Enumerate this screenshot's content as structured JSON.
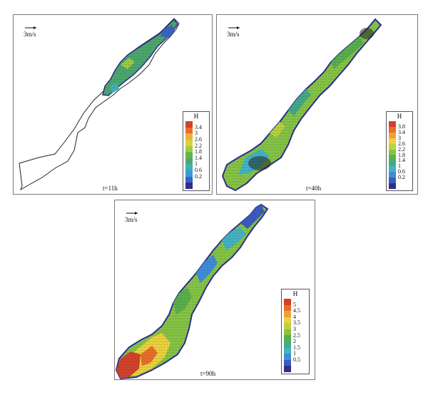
{
  "panels": [
    {
      "scale_label": "3m/s",
      "time_label": "t=11h",
      "legend": {
        "title": "H",
        "ticks": [
          "3.4",
          "3",
          "2.6",
          "2.2",
          "1.8",
          "1.4",
          "1",
          "0.6",
          "0.2"
        ],
        "colors": [
          "#d2412a",
          "#e86e28",
          "#eeb03a",
          "#d9d23a",
          "#9ccd43",
          "#67b543",
          "#4aa86f",
          "#42b0b3",
          "#3b9ad8",
          "#3a64c4",
          "#2d2e8e"
        ]
      }
    },
    {
      "scale_label": "3m/s",
      "time_label": "t=40h",
      "legend": {
        "title": "H",
        "ticks": [
          "3.8",
          "3.4",
          "3",
          "2.6",
          "2.2",
          "1.8",
          "1.4",
          "1",
          "0.6",
          "0.2"
        ],
        "colors": [
          "#d2412a",
          "#e86e28",
          "#eea13a",
          "#ecd23c",
          "#b9d33f",
          "#85c445",
          "#58b04b",
          "#44a98a",
          "#42b3c4",
          "#3b8ed6",
          "#3a5cc0",
          "#2d2e8e"
        ]
      }
    },
    {
      "scale_label": "3m/s",
      "time_label": "t=90h",
      "legend": {
        "title": "H",
        "ticks": [
          "5",
          "4.5",
          "4",
          "3.5",
          "3",
          "2.5",
          "2",
          "1.5",
          "1",
          "0.5"
        ],
        "colors": [
          "#d2412a",
          "#e86e28",
          "#eea13a",
          "#ecd23c",
          "#b9d33f",
          "#85c445",
          "#58b04b",
          "#44a98a",
          "#42b3c4",
          "#3b8ed6",
          "#3a5cc0",
          "#2d2e8e"
        ]
      }
    }
  ]
}
